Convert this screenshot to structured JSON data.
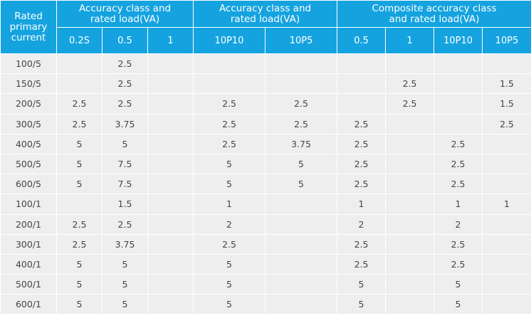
{
  "header": {
    "corner": "Rated\nprimary\ncurrent",
    "groups": [
      {
        "label": "Accuracy class and\nrated load(VA)",
        "span": 3
      },
      {
        "label": "Accuracy class and\nrated load(VA)",
        "span": 2
      },
      {
        "label": "Composite accuracy class\nand rated load(VA)",
        "span": 4
      }
    ],
    "columns": [
      "0.2S",
      "0.5",
      "1",
      "10P10",
      "10P5",
      "0.5",
      "1",
      "10P10",
      "10P5"
    ]
  },
  "rows": [
    {
      "current": "100/5",
      "cells": [
        "",
        "2.5",
        "",
        "",
        "",
        "",
        "",
        "",
        ""
      ]
    },
    {
      "current": "150/5",
      "cells": [
        "",
        "2.5",
        "",
        "",
        "",
        "",
        "2.5",
        "",
        "1.5"
      ]
    },
    {
      "current": "200/5",
      "cells": [
        "2.5",
        "2.5",
        "",
        "2.5",
        "2.5",
        "",
        "2.5",
        "",
        "1.5"
      ]
    },
    {
      "current": "300/5",
      "cells": [
        "2.5",
        "3.75",
        "",
        "2.5",
        "2.5",
        "2.5",
        "",
        "",
        "2.5"
      ]
    },
    {
      "current": "400/5",
      "cells": [
        "5",
        "5",
        "",
        "2.5",
        "3.75",
        "2.5",
        "",
        "2.5",
        ""
      ]
    },
    {
      "current": "500/5",
      "cells": [
        "5",
        "7.5",
        "",
        "5",
        "5",
        "2.5",
        "",
        "2.5",
        ""
      ]
    },
    {
      "current": "600/5",
      "cells": [
        "5",
        "7.5",
        "",
        "5",
        "5",
        "2.5",
        "",
        "2.5",
        ""
      ]
    },
    {
      "current": "100/1",
      "cells": [
        "",
        "1.5",
        "",
        "1",
        "",
        "1",
        "",
        "1",
        "1"
      ]
    },
    {
      "current": "200/1",
      "cells": [
        "2.5",
        "2.5",
        "",
        "2",
        "",
        "2",
        "",
        "2",
        ""
      ]
    },
    {
      "current": "300/1",
      "cells": [
        "2.5",
        "3.75",
        "",
        "2.5",
        "",
        "2.5",
        "",
        "2.5",
        ""
      ]
    },
    {
      "current": "400/1",
      "cells": [
        "5",
        "5",
        "",
        "5",
        "",
        "2.5",
        "",
        "2.5",
        ""
      ]
    },
    {
      "current": "500/1",
      "cells": [
        "5",
        "5",
        "",
        "5",
        "",
        "5",
        "",
        "5",
        ""
      ]
    },
    {
      "current": "600/1",
      "cells": [
        "5",
        "5",
        "",
        "5",
        "",
        "5",
        "",
        "5",
        ""
      ]
    }
  ],
  "colors": {
    "header_bg": "#15a3df",
    "header_text": "#ffffff",
    "cell_bg": "#eeeeee",
    "cell_text": "#444444"
  }
}
